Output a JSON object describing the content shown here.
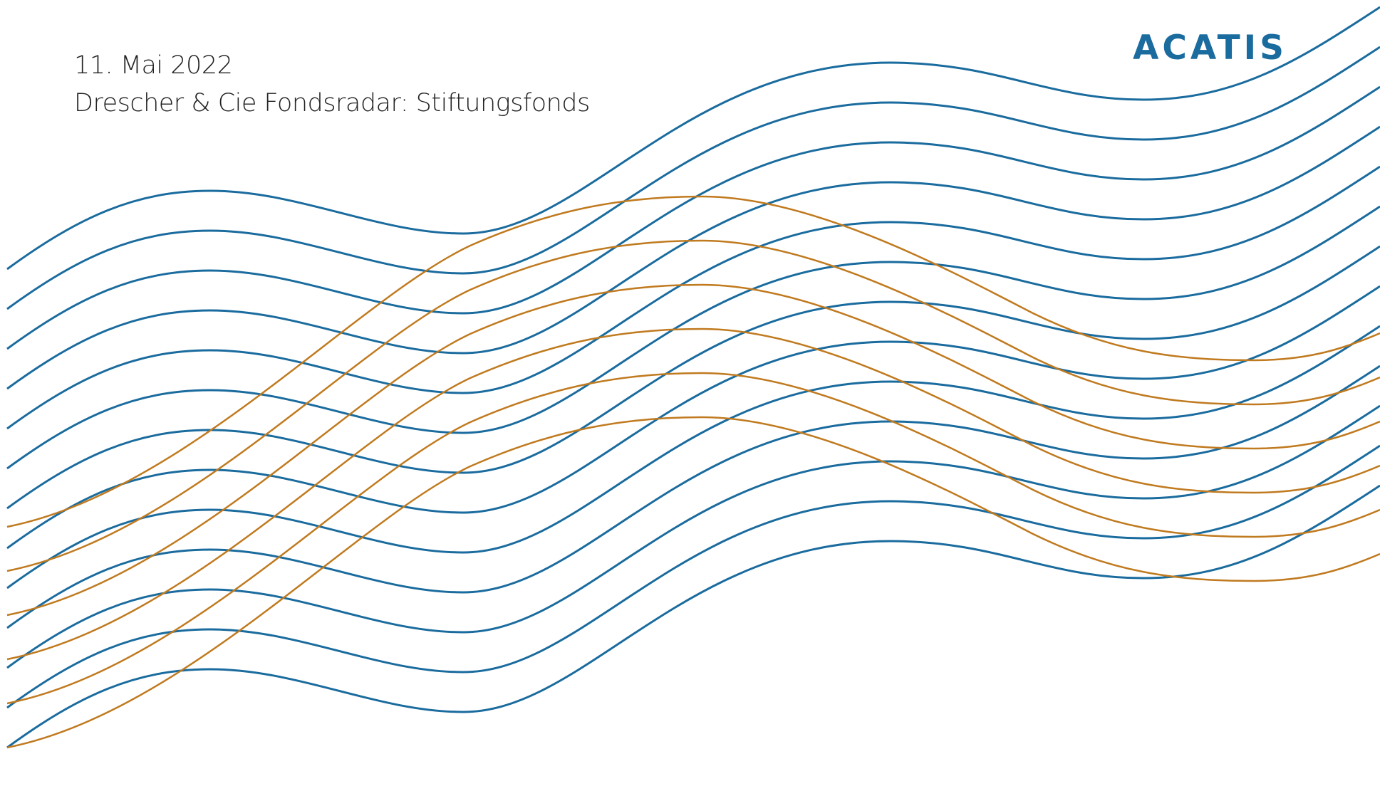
{
  "header": {
    "date": "11. Mai 2022",
    "title": "Drescher & Cie Fondsradar: Stiftungsfonds"
  },
  "brand": {
    "logo_text": "ACATIS",
    "logo_color": "#1a6b9e"
  },
  "decoration": {
    "blue_wave_color": "#1a6b9e",
    "orange_wave_color": "#c07a1f",
    "blue_wave_count": 13,
    "orange_wave_count": 6
  }
}
